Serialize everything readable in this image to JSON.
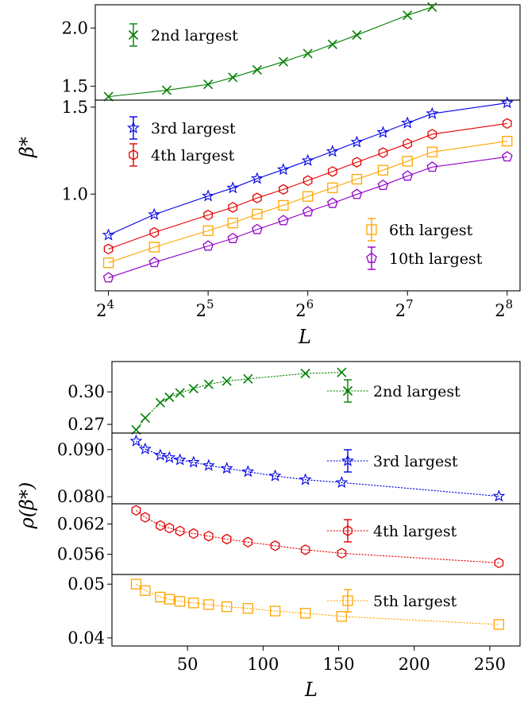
{
  "figure": {
    "top_xlabel": "L",
    "top_ylabel": "β*",
    "bottom_xlabel": "L",
    "bottom_ylabel": "ρ(β*)"
  },
  "chart_data": [
    {
      "type": "line",
      "panel": "top-upper",
      "xscale": "log2",
      "xlim": [
        14.6,
        280
      ],
      "ylim": [
        1.38,
        2.2
      ],
      "yticks": [
        {
          "v": 1.5,
          "label": "1.5"
        },
        {
          "v": 2.0,
          "label": "2.0"
        }
      ],
      "legend_position": "top-left",
      "series": [
        {
          "name": "2nd largest",
          "color": "#008000",
          "marker": "x",
          "linestyle": "solid",
          "x": [
            16,
            24,
            32,
            38,
            45,
            54,
            64,
            76,
            90,
            128,
            152
          ],
          "y": [
            1.41,
            1.465,
            1.515,
            1.575,
            1.64,
            1.71,
            1.78,
            1.86,
            1.94,
            2.11,
            2.18
          ]
        }
      ]
    },
    {
      "type": "line",
      "panel": "top-lower",
      "xscale": "log2",
      "yscale": "log",
      "xlim": [
        14.6,
        280
      ],
      "ylim": [
        0.637,
        1.55
      ],
      "yticks": [
        {
          "v": 1.0,
          "label": "1.0"
        },
        {
          "v": 1.5,
          "label": "1.5"
        }
      ],
      "xticks": [
        {
          "v": 16,
          "base": "2",
          "exp": "4"
        },
        {
          "v": 32,
          "base": "2",
          "exp": "5"
        },
        {
          "v": 64,
          "base": "2",
          "exp": "6"
        },
        {
          "v": 128,
          "base": "2",
          "exp": "7"
        },
        {
          "v": 256,
          "base": "2",
          "exp": "8"
        }
      ],
      "legend_position": "top-left and bottom-right",
      "series": [
        {
          "name": "3rd largest",
          "color": "#0000e6",
          "marker": "star",
          "linestyle": "solid",
          "x": [
            16,
            22,
            32,
            38,
            45,
            54,
            64,
            76,
            90,
            108,
            128,
            152,
            256
          ],
          "y": [
            0.826,
            0.909,
            0.991,
            1.029,
            1.075,
            1.121,
            1.169,
            1.22,
            1.274,
            1.333,
            1.393,
            1.455,
            1.53
          ]
        },
        {
          "name": "4th largest",
          "color": "#e60000",
          "marker": "hexagon",
          "linestyle": "solid",
          "x": [
            16,
            22,
            32,
            38,
            45,
            54,
            64,
            76,
            90,
            108,
            128,
            152,
            256
          ],
          "y": [
            0.774,
            0.836,
            0.907,
            0.94,
            0.982,
            1.022,
            1.065,
            1.111,
            1.16,
            1.213,
            1.265,
            1.322,
            1.39
          ]
        },
        {
          "name": "6th largest",
          "color": "#ffa500",
          "marker": "square",
          "linestyle": "solid",
          "x": [
            16,
            22,
            32,
            38,
            45,
            54,
            64,
            76,
            90,
            108,
            128,
            152,
            256
          ],
          "y": [
            0.726,
            0.781,
            0.843,
            0.874,
            0.911,
            0.949,
            0.989,
            1.03,
            1.072,
            1.118,
            1.166,
            1.217,
            1.28
          ]
        },
        {
          "name": "10th largest",
          "color": "#9400c8",
          "marker": "pentagon",
          "linestyle": "solid",
          "x": [
            16,
            22,
            32,
            38,
            45,
            54,
            64,
            76,
            90,
            108,
            128,
            152,
            256
          ],
          "y": [
            0.677,
            0.727,
            0.785,
            0.813,
            0.848,
            0.884,
            0.921,
            0.958,
            0.999,
            1.042,
            1.088,
            1.134,
            1.19
          ]
        }
      ]
    },
    {
      "type": "line",
      "panel": "bottom-1",
      "xlim": [
        0,
        270
      ],
      "ylim": [
        0.262,
        0.328
      ],
      "yticks": [
        {
          "v": 0.27,
          "label": "0.27"
        },
        {
          "v": 0.3,
          "label": "0.30"
        }
      ],
      "legend_position": "right",
      "series": [
        {
          "name": "2nd largest",
          "color": "#008000",
          "marker": "x",
          "linestyle": "dotted",
          "x": [
            16,
            22,
            32,
            38,
            45,
            54,
            64,
            76,
            90,
            128,
            152
          ],
          "y": [
            0.265,
            0.276,
            0.29,
            0.295,
            0.299,
            0.303,
            0.307,
            0.31,
            0.312,
            0.317,
            0.318
          ]
        }
      ]
    },
    {
      "type": "line",
      "panel": "bottom-2",
      "xlim": [
        0,
        270
      ],
      "ylim": [
        0.0785,
        0.0935
      ],
      "yticks": [
        {
          "v": 0.08,
          "label": "0.080"
        },
        {
          "v": 0.09,
          "label": "0.090"
        }
      ],
      "legend_position": "right",
      "series": [
        {
          "name": "3rd largest",
          "color": "#0000e6",
          "marker": "star",
          "linestyle": "dotted",
          "x": [
            16,
            22,
            32,
            38,
            45,
            54,
            64,
            76,
            90,
            108,
            128,
            152,
            256
          ],
          "y": [
            0.0918,
            0.0901,
            0.0888,
            0.0883,
            0.0878,
            0.0873,
            0.0866,
            0.086,
            0.0853,
            0.0844,
            0.0836,
            0.083,
            0.0801
          ]
        }
      ]
    },
    {
      "type": "line",
      "panel": "bottom-3",
      "xlim": [
        0,
        270
      ],
      "ylim": [
        0.052,
        0.066
      ],
      "yticks": [
        {
          "v": 0.056,
          "label": "0.056"
        },
        {
          "v": 0.062,
          "label": "0.062"
        }
      ],
      "legend_position": "right",
      "series": [
        {
          "name": "4th largest",
          "color": "#e60000",
          "marker": "hexagon",
          "linestyle": "dotted",
          "x": [
            16,
            22,
            32,
            38,
            45,
            54,
            64,
            76,
            90,
            108,
            128,
            152,
            256
          ],
          "y": [
            0.0647,
            0.0633,
            0.0617,
            0.0612,
            0.0606,
            0.0601,
            0.0596,
            0.059,
            0.0584,
            0.0577,
            0.0569,
            0.0562,
            0.0543
          ]
        }
      ]
    },
    {
      "type": "line",
      "panel": "bottom-4",
      "xlim": [
        0,
        270
      ],
      "ylim": [
        0.0385,
        0.0518
      ],
      "yticks": [
        {
          "v": 0.04,
          "label": "0.04"
        },
        {
          "v": 0.05,
          "label": "0.05"
        }
      ],
      "xticks": [
        {
          "v": 50,
          "label": "50"
        },
        {
          "v": 100,
          "label": "100"
        },
        {
          "v": 150,
          "label": "150"
        },
        {
          "v": 200,
          "label": "200"
        },
        {
          "v": 250,
          "label": "250"
        }
      ],
      "legend_position": "right",
      "series": [
        {
          "name": "5th largest",
          "color": "#ffa500",
          "marker": "square",
          "linestyle": "dotted",
          "x": [
            16,
            22,
            32,
            38,
            45,
            54,
            64,
            76,
            90,
            108,
            128,
            152,
            256
          ],
          "y": [
            0.05,
            0.0488,
            0.0476,
            0.0472,
            0.0468,
            0.0465,
            0.0462,
            0.0458,
            0.0455,
            0.045,
            0.0446,
            0.044,
            0.0425
          ]
        }
      ]
    }
  ]
}
